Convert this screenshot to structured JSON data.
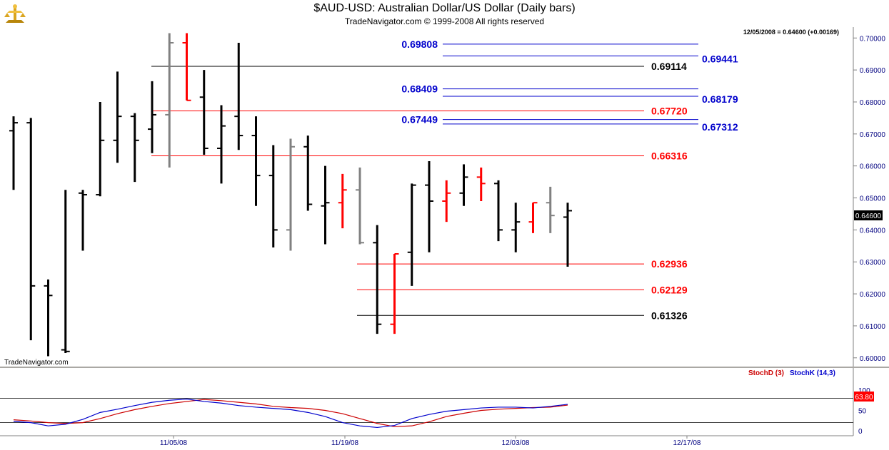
{
  "header": {
    "title": "$AUD-USD:  Australian Dollar/US Dollar  (Daily bars)",
    "subtitle": "TradeNavigator.com © 1999-2008 All rights reserved"
  },
  "price_panel": {
    "last_bar_info": "12/05/2008 = 0.64600 (+0.00169)",
    "current_price_label": "0.64600",
    "watermark": "TradeNavigator.com"
  },
  "stoch_panel": {
    "legend_d": "StochD (3)",
    "legend_k": "StochK (14,3)",
    "current_value_label": "63.80",
    "y_ticks": [
      "100",
      "50",
      "0"
    ]
  },
  "colors": {
    "up": "#000000",
    "down": "#ff0000",
    "neutral": "#808080",
    "fib_red": "#ff0000",
    "fib_blue": "#0000cc",
    "fib_black": "#000000",
    "stoch_d": "#cc0000",
    "stoch_k": "#0000cc"
  },
  "chart_data": [
    {
      "type": "ohlc",
      "title": "$AUD-USD:  Australian Dollar/US Dollar  (Daily bars)",
      "ylim": [
        0.5985,
        0.703
      ],
      "y_ticks": [
        "0.70000",
        "0.69000",
        "0.68000",
        "0.67000",
        "0.66000",
        "0.65000",
        "0.64000",
        "0.63000",
        "0.62000",
        "0.61000",
        "0.60000"
      ],
      "x_ticks": [
        "11/05/08",
        "11/19/08",
        "12/03/08",
        "12/17/08"
      ],
      "bars": [
        {
          "o": 0.671,
          "h": 0.6755,
          "l": 0.6525,
          "c": 0.6735,
          "color": "up"
        },
        {
          "o": 0.6735,
          "h": 0.675,
          "l": 0.6055,
          "c": 0.6225,
          "color": "up"
        },
        {
          "o": 0.6225,
          "h": 0.6245,
          "l": 0.6005,
          "c": 0.6195,
          "color": "up"
        },
        {
          "o": 0.6025,
          "h": 0.6525,
          "l": 0.6015,
          "c": 0.602,
          "color": "up"
        },
        {
          "o": 0.6515,
          "h": 0.6525,
          "l": 0.6335,
          "c": 0.651,
          "color": "up"
        },
        {
          "o": 0.651,
          "h": 0.68,
          "l": 0.6505,
          "c": 0.668,
          "color": "up"
        },
        {
          "o": 0.668,
          "h": 0.6895,
          "l": 0.661,
          "c": 0.6755,
          "color": "up"
        },
        {
          "o": 0.6755,
          "h": 0.6765,
          "l": 0.655,
          "c": 0.668,
          "color": "up"
        },
        {
          "o": 0.6715,
          "h": 0.6865,
          "l": 0.664,
          "c": 0.676,
          "color": "up"
        },
        {
          "o": 0.676,
          "h": 0.7015,
          "l": 0.6595,
          "c": 0.6985,
          "color": "neutral"
        },
        {
          "o": 0.6985,
          "h": 0.7015,
          "l": 0.6805,
          "c": 0.6805,
          "color": "down"
        },
        {
          "o": 0.6815,
          "h": 0.69,
          "l": 0.6635,
          "c": 0.6655,
          "color": "up"
        },
        {
          "o": 0.6655,
          "h": 0.679,
          "l": 0.6545,
          "c": 0.6725,
          "color": "up"
        },
        {
          "o": 0.6755,
          "h": 0.6985,
          "l": 0.665,
          "c": 0.6695,
          "color": "up"
        },
        {
          "o": 0.6695,
          "h": 0.6755,
          "l": 0.6475,
          "c": 0.657,
          "color": "up"
        },
        {
          "o": 0.657,
          "h": 0.6665,
          "l": 0.6345,
          "c": 0.64,
          "color": "up"
        },
        {
          "o": 0.64,
          "h": 0.6685,
          "l": 0.6335,
          "c": 0.666,
          "color": "neutral"
        },
        {
          "o": 0.666,
          "h": 0.6695,
          "l": 0.646,
          "c": 0.648,
          "color": "up"
        },
        {
          "o": 0.6475,
          "h": 0.66,
          "l": 0.6355,
          "c": 0.6485,
          "color": "up"
        },
        {
          "o": 0.6485,
          "h": 0.6575,
          "l": 0.6405,
          "c": 0.6525,
          "color": "down"
        },
        {
          "o": 0.6525,
          "h": 0.6595,
          "l": 0.6355,
          "c": 0.636,
          "color": "neutral"
        },
        {
          "o": 0.636,
          "h": 0.6415,
          "l": 0.6075,
          "c": 0.6105,
          "color": "up"
        },
        {
          "o": 0.6105,
          "h": 0.6325,
          "l": 0.6075,
          "c": 0.6325,
          "color": "down"
        },
        {
          "o": 0.633,
          "h": 0.6545,
          "l": 0.6225,
          "c": 0.654,
          "color": "up"
        },
        {
          "o": 0.654,
          "h": 0.6615,
          "l": 0.633,
          "c": 0.649,
          "color": "up"
        },
        {
          "o": 0.649,
          "h": 0.6555,
          "l": 0.6425,
          "c": 0.6515,
          "color": "down"
        },
        {
          "o": 0.6515,
          "h": 0.6605,
          "l": 0.6475,
          "c": 0.6565,
          "color": "up"
        },
        {
          "o": 0.6565,
          "h": 0.6595,
          "l": 0.649,
          "c": 0.6545,
          "color": "down"
        },
        {
          "o": 0.6545,
          "h": 0.6555,
          "l": 0.6365,
          "c": 0.64,
          "color": "up"
        },
        {
          "o": 0.64,
          "h": 0.6485,
          "l": 0.633,
          "c": 0.6425,
          "color": "up"
        },
        {
          "o": 0.6425,
          "h": 0.6485,
          "l": 0.639,
          "c": 0.6485,
          "color": "down"
        },
        {
          "o": 0.6485,
          "h": 0.6535,
          "l": 0.639,
          "c": 0.6445,
          "color": "neutral"
        },
        {
          "o": 0.644,
          "h": 0.6485,
          "l": 0.6285,
          "c": 0.646,
          "color": "up"
        }
      ],
      "levels": [
        {
          "label": "0.69808",
          "value": 0.69808,
          "color": "fib_blue",
          "side": "left"
        },
        {
          "label": "0.69441",
          "value": 0.69441,
          "color": "fib_blue",
          "side": "right"
        },
        {
          "label": "0.69114",
          "value": 0.69114,
          "color": "fib_black",
          "side": "right"
        },
        {
          "label": "0.68409",
          "value": 0.68409,
          "color": "fib_blue",
          "side": "left"
        },
        {
          "label": "0.68179",
          "value": 0.68179,
          "color": "fib_blue",
          "side": "right"
        },
        {
          "label": "0.67720",
          "value": 0.6772,
          "color": "fib_red",
          "side": "right"
        },
        {
          "label": "0.67449",
          "value": 0.67449,
          "color": "fib_blue",
          "side": "left"
        },
        {
          "label": "0.67312",
          "value": 0.67312,
          "color": "fib_blue",
          "side": "right"
        },
        {
          "label": "0.66316",
          "value": 0.66316,
          "color": "fib_red",
          "side": "right"
        },
        {
          "label": "0.62936",
          "value": 0.62936,
          "color": "fib_red",
          "side": "right"
        },
        {
          "label": "0.62129",
          "value": 0.62129,
          "color": "fib_red",
          "side": "right"
        },
        {
          "label": "0.61326",
          "value": 0.61326,
          "color": "fib_black",
          "side": "right"
        }
      ]
    },
    {
      "type": "line",
      "ylim": [
        0,
        100
      ],
      "y_ticks": [
        "100",
        "50",
        "0"
      ],
      "series": [
        {
          "name": "StochD (3)",
          "color": "stoch_d",
          "values": [
            27,
            24,
            20,
            18,
            20,
            30,
            42,
            52,
            60,
            67,
            72,
            77,
            74,
            70,
            66,
            60,
            57,
            55,
            50,
            42,
            30,
            18,
            10,
            12,
            22,
            35,
            43,
            50,
            53,
            55,
            57,
            58,
            63
          ]
        },
        {
          "name": "StochK (14,3)",
          "color": "stoch_k",
          "values": [
            23,
            20,
            12,
            16,
            28,
            45,
            53,
            62,
            70,
            75,
            78,
            72,
            68,
            62,
            58,
            55,
            52,
            45,
            35,
            20,
            12,
            8,
            13,
            30,
            40,
            48,
            52,
            56,
            58,
            58,
            56,
            60,
            65
          ]
        }
      ]
    }
  ]
}
